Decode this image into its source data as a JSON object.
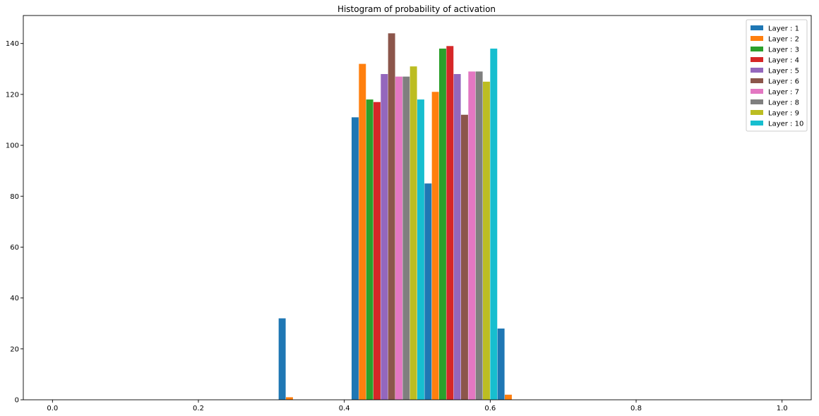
{
  "chart_data": {
    "type": "bar",
    "title": "Histogram of probability of activation",
    "xlabel": "",
    "ylabel": "",
    "xlim": [
      -0.04,
      1.04
    ],
    "ylim": [
      0,
      151
    ],
    "xticks": [
      0.0,
      0.2,
      0.4,
      0.6,
      0.8,
      1.0
    ],
    "xtick_labels": [
      "0.0",
      "0.2",
      "0.4",
      "0.6",
      "0.8",
      "1.0"
    ],
    "yticks": [
      0,
      20,
      40,
      60,
      80,
      100,
      120,
      140
    ],
    "ytick_labels": [
      "0",
      "20",
      "40",
      "60",
      "80",
      "100",
      "120",
      "140"
    ],
    "grid": false,
    "legend_position": "top-right",
    "bins": [
      0.31,
      0.41,
      0.51,
      0.61
    ],
    "bin_width": 0.1,
    "series": [
      {
        "name": "Layer : 1",
        "color": "#1f77b4",
        "values": [
          32,
          111,
          85,
          28
        ]
      },
      {
        "name": "Layer : 2",
        "color": "#ff7f0e",
        "values": [
          1,
          132,
          121,
          2
        ]
      },
      {
        "name": "Layer : 3",
        "color": "#2ca02c",
        "values": [
          0,
          118,
          138,
          0
        ]
      },
      {
        "name": "Layer : 4",
        "color": "#d62728",
        "values": [
          0,
          117,
          139,
          0
        ]
      },
      {
        "name": "Layer : 5",
        "color": "#9467bd",
        "values": [
          0,
          128,
          128,
          0
        ]
      },
      {
        "name": "Layer : 6",
        "color": "#8c564b",
        "values": [
          0,
          144,
          112,
          0
        ]
      },
      {
        "name": "Layer : 7",
        "color": "#e377c2",
        "values": [
          0,
          127,
          129,
          0
        ]
      },
      {
        "name": "Layer : 8",
        "color": "#7f7f7f",
        "values": [
          0,
          127,
          129,
          0
        ]
      },
      {
        "name": "Layer : 9",
        "color": "#bcbd22",
        "values": [
          0,
          131,
          125,
          0
        ]
      },
      {
        "name": "Layer : 10",
        "color": "#17becf",
        "values": [
          0,
          118,
          138,
          0
        ]
      }
    ]
  }
}
